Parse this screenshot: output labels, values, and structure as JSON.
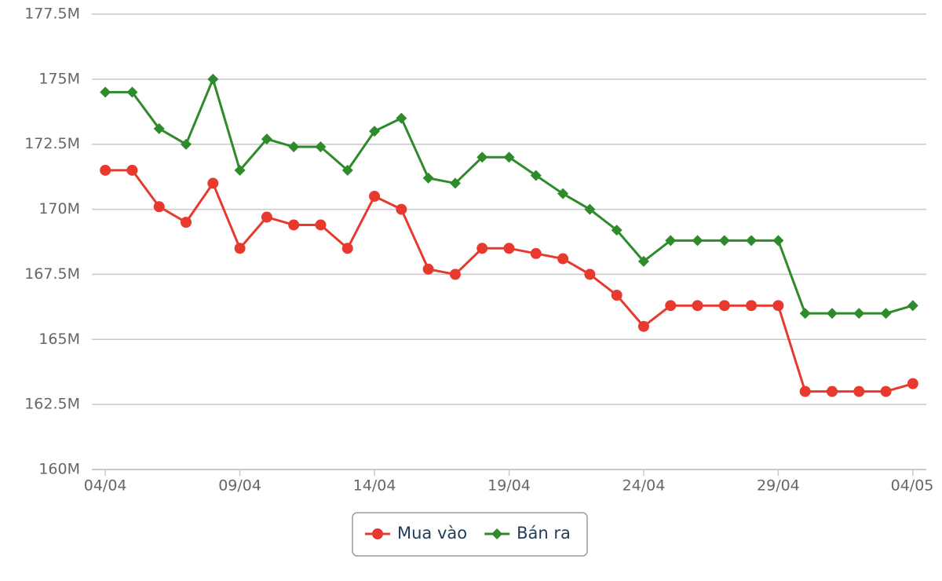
{
  "chart_data": {
    "type": "line",
    "categories": [
      "04/04",
      null,
      null,
      null,
      null,
      "09/04",
      null,
      null,
      null,
      null,
      "14/04",
      null,
      null,
      null,
      null,
      "19/04",
      null,
      null,
      null,
      null,
      "24/04",
      null,
      null,
      null,
      null,
      "29/04",
      null,
      null,
      null,
      null,
      "04/05"
    ],
    "series": [
      {
        "name": "Mua vào",
        "color": "#e8392f",
        "marker": "circle",
        "values": [
          171.5,
          171.5,
          170.1,
          169.5,
          171.0,
          168.5,
          169.7,
          169.4,
          169.4,
          168.5,
          170.5,
          170.0,
          167.7,
          167.5,
          168.5,
          168.5,
          168.3,
          168.1,
          167.5,
          166.7,
          165.5,
          166.3,
          166.3,
          166.3,
          166.3,
          166.3,
          163.0,
          163.0,
          163.0,
          163.0,
          163.3
        ]
      },
      {
        "name": "Bán ra",
        "color": "#2e8b2b",
        "marker": "diamond",
        "values": [
          174.5,
          174.5,
          173.1,
          172.5,
          175.0,
          171.5,
          172.7,
          172.4,
          172.4,
          171.5,
          173.0,
          173.5,
          171.2,
          171.0,
          172.0,
          172.0,
          171.3,
          170.6,
          170.0,
          169.2,
          168.0,
          168.8,
          168.8,
          168.8,
          168.8,
          168.8,
          166.0,
          166.0,
          166.0,
          166.0,
          166.3
        ]
      }
    ],
    "ylim": [
      160,
      177.5
    ],
    "yticks": [
      {
        "value": 160,
        "label": "160M"
      },
      {
        "value": 162.5,
        "label": "162.5M"
      },
      {
        "value": 165,
        "label": "165M"
      },
      {
        "value": 167.5,
        "label": "167.5M"
      },
      {
        "value": 170,
        "label": "170M"
      },
      {
        "value": 172.5,
        "label": "172.5M"
      },
      {
        "value": 175,
        "label": "175M"
      },
      {
        "value": 177.5,
        "label": "177.5M"
      }
    ],
    "grid": true,
    "legend": "bottom"
  }
}
